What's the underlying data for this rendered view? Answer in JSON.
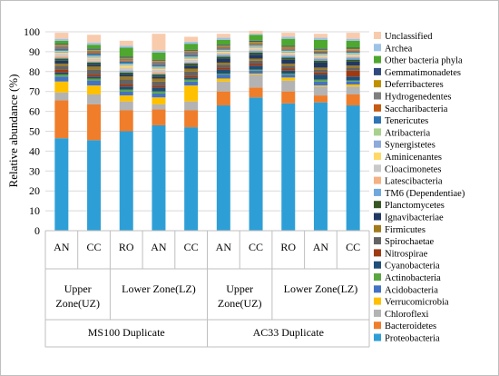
{
  "chart_data": {
    "type": "bar",
    "stacked": true,
    "ylabel": "Relative abundance (%)",
    "ylim": [
      0,
      100
    ],
    "yticks": [
      0,
      10,
      20,
      30,
      40,
      50,
      60,
      70,
      80,
      90,
      100
    ],
    "grid": true,
    "legend_position": "right",
    "categories": [
      "AN",
      "CC",
      "RO",
      "AN",
      "CC",
      "AN",
      "CC",
      "RO",
      "AN",
      "CC"
    ],
    "zone_labels": [
      {
        "label": "Upper Zone(UZ)",
        "span": [
          0,
          1
        ]
      },
      {
        "label": "Lower Zone(LZ)",
        "span": [
          2,
          4
        ]
      },
      {
        "label": "Upper Zone(UZ)",
        "span": [
          5,
          6
        ]
      },
      {
        "label": "Lower Zone(LZ)",
        "span": [
          7,
          9
        ]
      }
    ],
    "group_labels": [
      {
        "label": "MS100 Duplicate",
        "span": [
          0,
          4
        ]
      },
      {
        "label": "AC33 Duplicate",
        "span": [
          5,
          9
        ]
      }
    ],
    "series": [
      {
        "name": "Proteobacteria",
        "color": "#2e9fd6",
        "values": [
          46.5,
          45.5,
          50.0,
          53.0,
          52.0,
          63.0,
          67.0,
          64.0,
          64.5,
          63.0
        ]
      },
      {
        "name": "Bacteroidetes",
        "color": "#f07d2a",
        "values": [
          19.0,
          18.0,
          10.5,
          8.0,
          8.5,
          7.0,
          5.0,
          6.0,
          3.5,
          5.5
        ]
      },
      {
        "name": "Chloroflexi",
        "color": "#b3b3b3",
        "values": [
          4.0,
          5.0,
          4.5,
          2.5,
          4.5,
          5.0,
          6.5,
          5.5,
          4.5,
          4.0
        ]
      },
      {
        "name": "Verrucomicrobia",
        "color": "#ffc000",
        "values": [
          5.5,
          4.5,
          3.0,
          3.5,
          8.0,
          1.5,
          0.5,
          1.5,
          0.5,
          1.0
        ]
      },
      {
        "name": "Acidobacteria",
        "color": "#4472c4",
        "values": [
          2.5,
          2.5,
          2.0,
          2.0,
          2.0,
          2.0,
          1.5,
          1.5,
          2.0,
          1.5
        ]
      },
      {
        "name": "Actinobacteria",
        "color": "#5aa640",
        "values": [
          1.0,
          1.0,
          1.0,
          1.0,
          1.0,
          0.5,
          0.5,
          0.5,
          1.0,
          0.5
        ]
      },
      {
        "name": "Cyanobacteria",
        "color": "#1f4e79",
        "values": [
          1.0,
          1.0,
          1.5,
          2.0,
          1.0,
          2.0,
          2.0,
          1.5,
          2.5,
          2.0
        ]
      },
      {
        "name": "Nitrospirae",
        "color": "#9e3a12",
        "values": [
          1.5,
          1.0,
          1.0,
          1.0,
          1.0,
          1.0,
          1.0,
          1.0,
          1.0,
          3.0
        ]
      },
      {
        "name": "Spirochaetae",
        "color": "#636363",
        "values": [
          2.0,
          2.5,
          2.5,
          2.0,
          2.0,
          1.5,
          1.5,
          1.5,
          1.5,
          1.5
        ]
      },
      {
        "name": "Firmicutes",
        "color": "#a17a1b",
        "values": [
          1.0,
          1.5,
          1.5,
          1.5,
          1.5,
          1.0,
          1.0,
          1.0,
          1.0,
          1.0
        ]
      },
      {
        "name": "Ignavibacteriae",
        "color": "#203864",
        "values": [
          1.5,
          1.0,
          1.0,
          1.0,
          1.5,
          2.0,
          2.0,
          2.0,
          2.5,
          2.0
        ]
      },
      {
        "name": "Planctomycetes",
        "color": "#375623",
        "values": [
          1.0,
          1.0,
          1.0,
          1.0,
          1.0,
          1.0,
          1.0,
          1.0,
          1.0,
          1.0
        ]
      },
      {
        "name": "TM6 (Dependentiae)",
        "color": "#6fa8dc",
        "values": [
          0.5,
          0.5,
          1.0,
          0.5,
          0.5,
          1.0,
          1.0,
          1.0,
          1.0,
          1.0
        ]
      },
      {
        "name": "Latescibacteria",
        "color": "#f4b183",
        "values": [
          1.0,
          0.5,
          0.5,
          1.0,
          0.5,
          0.5,
          0.5,
          0.5,
          0.5,
          0.5
        ]
      },
      {
        "name": "Cloacimonetes",
        "color": "#c9c9c9",
        "values": [
          1.0,
          1.0,
          1.0,
          1.0,
          1.0,
          0.5,
          0.5,
          0.5,
          0.5,
          0.5
        ]
      },
      {
        "name": "Aminicenantes",
        "color": "#ffd966",
        "values": [
          0.5,
          0.5,
          1.0,
          0.5,
          0.5,
          0.5,
          0.5,
          0.5,
          0.5,
          0.5
        ]
      },
      {
        "name": "Synergistetes",
        "color": "#8eaadb",
        "values": [
          0.5,
          0.5,
          0.5,
          0.5,
          0.5,
          0.5,
          0.5,
          0.5,
          0.5,
          0.5
        ]
      },
      {
        "name": "Atribacteria",
        "color": "#a9d18e",
        "values": [
          0.5,
          0.5,
          0.5,
          0.5,
          0.5,
          0.5,
          0.5,
          0.5,
          0.5,
          0.5
        ]
      },
      {
        "name": "Tenericutes",
        "color": "#2f75b5",
        "values": [
          1.0,
          1.0,
          1.0,
          1.0,
          1.0,
          0.5,
          0.5,
          0.5,
          0.5,
          0.5
        ]
      },
      {
        "name": "Saccharibacteria",
        "color": "#c55a11",
        "values": [
          0.5,
          0.5,
          0.5,
          0.5,
          0.5,
          0.5,
          0.5,
          0.5,
          0.5,
          0.5
        ]
      },
      {
        "name": "Hydrogenedentes",
        "color": "#7f7f7f",
        "values": [
          1.0,
          1.0,
          1.0,
          1.0,
          1.0,
          0.5,
          0.5,
          0.5,
          0.5,
          0.5
        ]
      },
      {
        "name": "Deferribacteres",
        "color": "#bf9000",
        "values": [
          0.5,
          0.5,
          0.5,
          0.5,
          0.5,
          0.5,
          0.5,
          0.5,
          0.5,
          0.5
        ]
      },
      {
        "name": "Gemmatimonadetes",
        "color": "#2e4a7d",
        "values": [
          0.5,
          0.5,
          0.5,
          0.5,
          0.5,
          0.5,
          0.5,
          0.5,
          0.5,
          0.5
        ]
      },
      {
        "name": "Other bacteria phyla",
        "color": "#4ea72e",
        "values": [
          1.5,
          2.0,
          4.5,
          3.5,
          3.0,
          2.5,
          3.0,
          3.5,
          4.5,
          3.5
        ]
      },
      {
        "name": "Archea",
        "color": "#9dc3e6",
        "values": [
          1.0,
          1.0,
          1.0,
          1.0,
          1.0,
          1.0,
          0.5,
          1.0,
          1.0,
          1.0
        ]
      },
      {
        "name": "Unclassified",
        "color": "#f8cbad",
        "values": [
          3.0,
          4.0,
          2.5,
          8.5,
          2.5,
          2.0,
          1.5,
          2.0,
          2.0,
          3.0
        ]
      }
    ]
  }
}
